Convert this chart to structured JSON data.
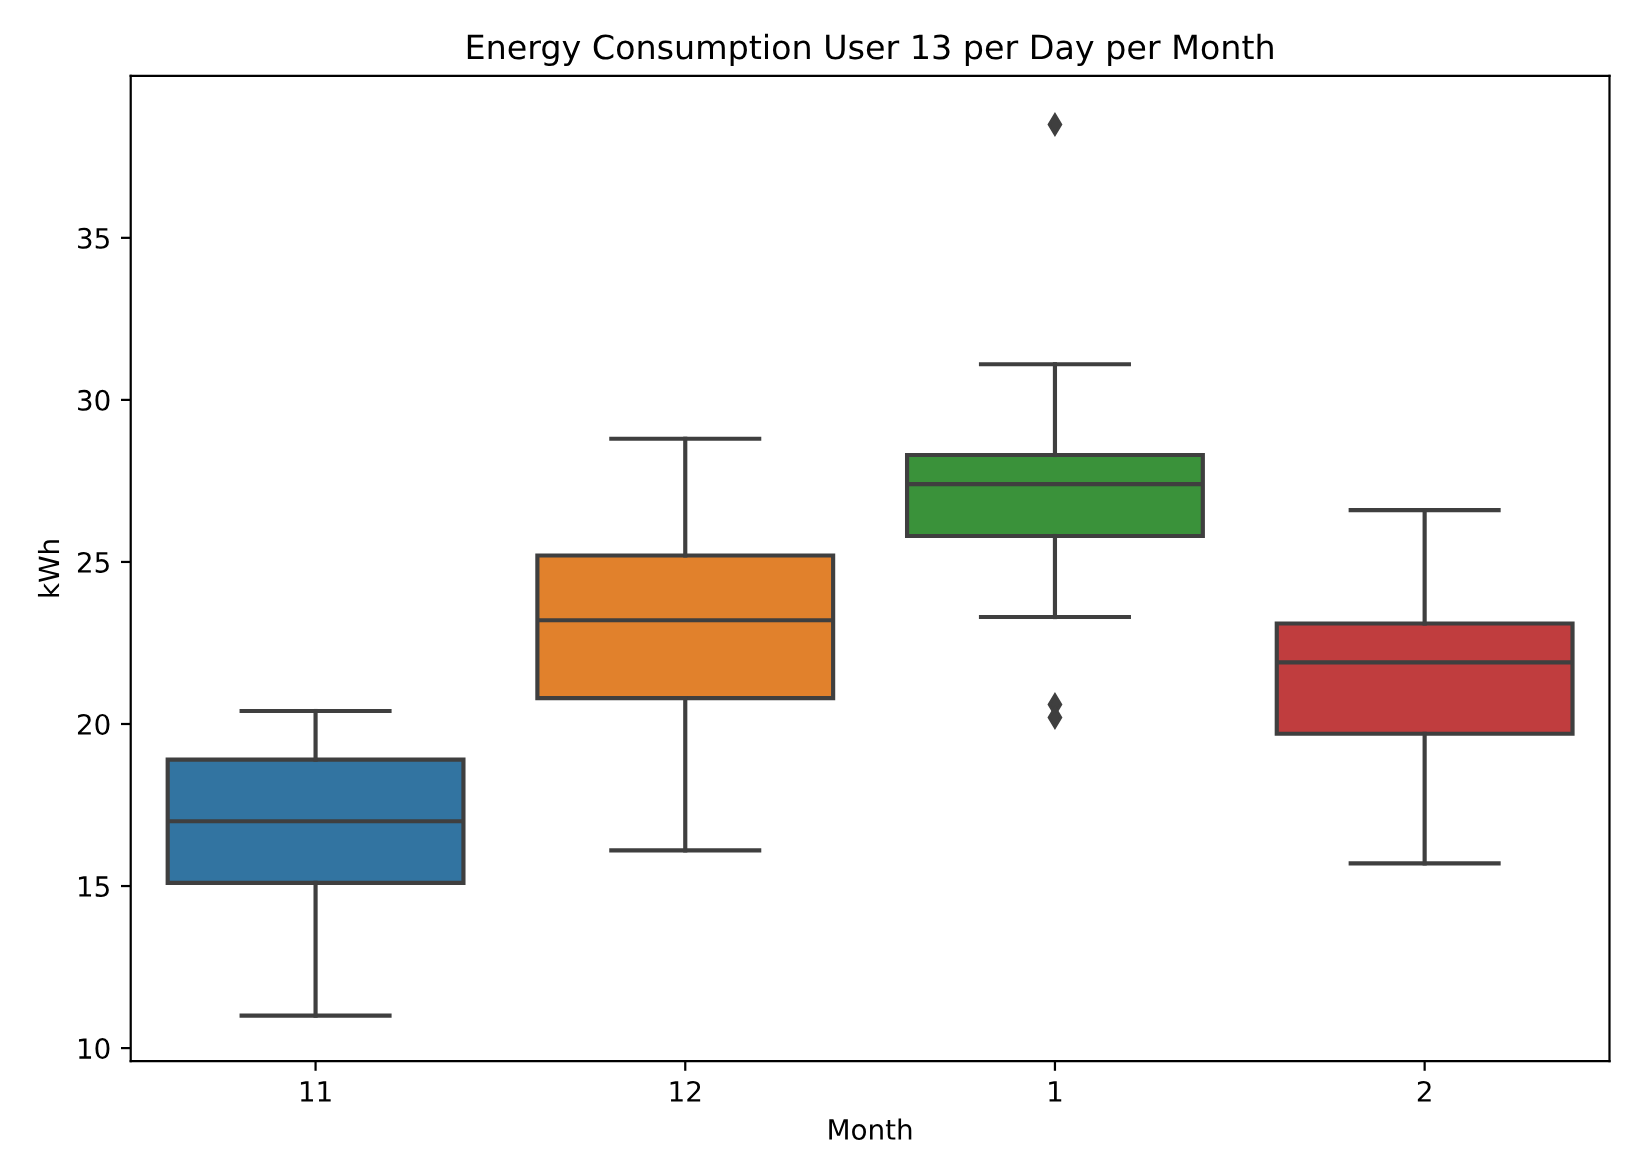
{
  "chart_data": {
    "type": "box",
    "title": "Energy Consumption User 13 per Day per Month",
    "xlabel": "Month",
    "ylabel": "kWh",
    "categories": [
      "11",
      "12",
      "1",
      "2"
    ],
    "colors": [
      "#3274a1",
      "#e1812c",
      "#3a923a",
      "#c03d3e"
    ],
    "boxes": [
      {
        "low": 11.0,
        "q1": 15.1,
        "median": 17.0,
        "q3": 18.9,
        "high": 20.4
      },
      {
        "low": 16.1,
        "q1": 20.8,
        "median": 23.2,
        "q3": 25.2,
        "high": 28.8
      },
      {
        "low": 23.3,
        "q1": 25.8,
        "median": 27.4,
        "q3": 28.3,
        "high": 31.1,
        "outliers": [
          38.5,
          20.6,
          20.2
        ]
      },
      {
        "low": 15.7,
        "q1": 19.7,
        "median": 21.9,
        "q3": 23.1,
        "high": 26.6
      }
    ],
    "ylim": [
      9.6,
      40
    ],
    "yticks": [
      10,
      15,
      20,
      25,
      30,
      35
    ],
    "marker": "diamond",
    "grid": false
  }
}
